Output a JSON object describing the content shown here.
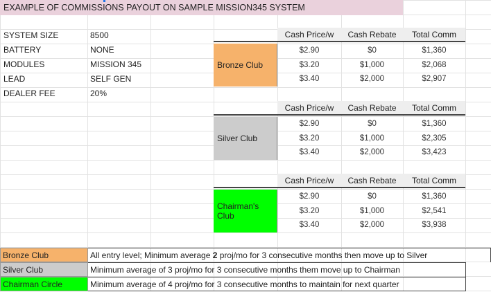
{
  "title": "EXAMPLE OF COMMISSIONS PAYOUT ON SAMPLE MISSION345 SYSTEM",
  "specs": [
    {
      "label": "SYSTEM SIZE",
      "value": "8500"
    },
    {
      "label": "BATTERY",
      "value": "NONE"
    },
    {
      "label": "MODULES",
      "value": "MISSION 345"
    },
    {
      "label": "LEAD",
      "value": "SELF GEN"
    },
    {
      "label": "DEALER FEE",
      "value": "20%"
    }
  ],
  "headers": {
    "cash_price": "Cash Price/w",
    "cash_rebate": "Cash Rebate",
    "total_comm": "Total Comm"
  },
  "clubs": [
    {
      "name": "Bronze Club",
      "color": "#f6b26b",
      "rows": [
        {
          "price": "$2.90",
          "rebate": "$0",
          "total": "$1,360"
        },
        {
          "price": "$3.20",
          "rebate": "$1,000",
          "total": "$2,068"
        },
        {
          "price": "$3.40",
          "rebate": "$2,000",
          "total": "$2,907"
        }
      ]
    },
    {
      "name": "Silver Club",
      "color": "#cccccc",
      "rows": [
        {
          "price": "$2.90",
          "rebate": "$0",
          "total": "$1,360"
        },
        {
          "price": "$3.20",
          "rebate": "$1,000",
          "total": "$2,305"
        },
        {
          "price": "$3.40",
          "rebate": "$2,000",
          "total": "$3,423"
        }
      ]
    },
    {
      "name": "Chairman's Club",
      "color": "#00ff00",
      "rows": [
        {
          "price": "$2.90",
          "rebate": "$0",
          "total": "$1,360"
        },
        {
          "price": "$3.20",
          "rebate": "$1,000",
          "total": "$2,541"
        },
        {
          "price": "$3.40",
          "rebate": "$2,000",
          "total": "$3,938"
        }
      ]
    }
  ],
  "rules": [
    {
      "name": "Bronze Club",
      "color": "#f6b26b",
      "text_parts": [
        "All entry level; Minimum average ",
        "2",
        " proj/mo for 3 consecutive months then move up to Silver"
      ]
    },
    {
      "name": "Silver Club",
      "color": "#cccccc",
      "text": "Minimum average of 3 proj/mo for 3 consecutive months them move up to Chairman"
    },
    {
      "name": "Chairman Circle",
      "color": "#00ff00",
      "text": "Minimum average of 4 proj/mo for 3 consecutive months to maintain for next quarter"
    }
  ]
}
